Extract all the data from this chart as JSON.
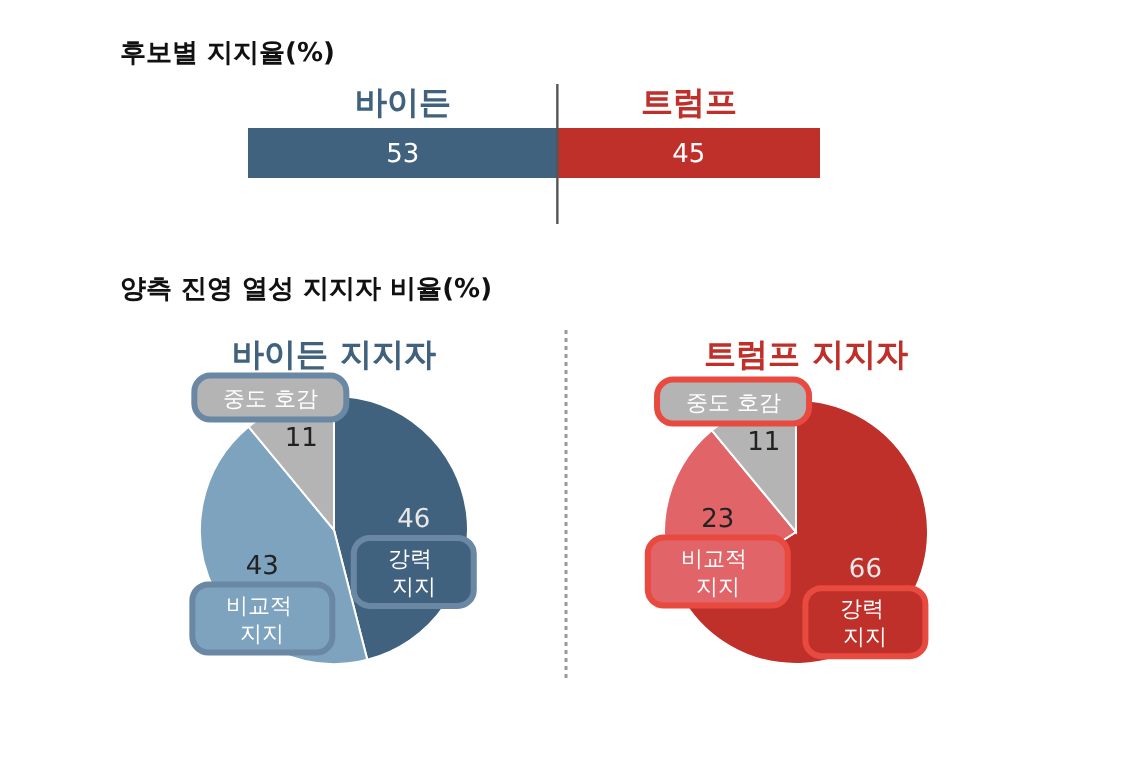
{
  "chart_data": [
    {
      "type": "bar",
      "title": "후보별 지지율(%)",
      "orientation": "horizontal",
      "stacked": true,
      "categories": [
        null
      ],
      "series": [
        {
          "name": "바이든",
          "color": "#41627f",
          "values": [
            53
          ]
        },
        {
          "name": "트럼프",
          "color": "#c0302a",
          "values": [
            45
          ]
        }
      ],
      "ref_lines": [
        {
          "axis": "x",
          "value": 53,
          "color": "#555555"
        }
      ],
      "data_labels": true,
      "legend": false
    },
    {
      "type": "pie",
      "title": "양측 진영 열성 지지자 비율(%)",
      "subtitle": "바이든 지지자",
      "categories": [
        "강력 지지",
        "비교적 지지",
        "중도 호감"
      ],
      "values": [
        46,
        43,
        11
      ],
      "colors": [
        "#41627f",
        "#7ea3bf",
        "#b4b4b4"
      ],
      "data_labels": true
    },
    {
      "type": "pie",
      "title": "트럼프 지지자",
      "categories": [
        "강력 지지",
        "비교적 지지",
        "중도 호감"
      ],
      "values": [
        66,
        23,
        11
      ],
      "colors": [
        "#c0302a",
        "#e06468",
        "#b4b4b4"
      ],
      "data_labels": true
    }
  ]
}
